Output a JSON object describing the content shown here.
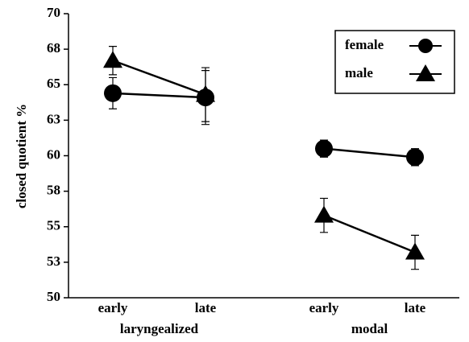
{
  "chart_data": {
    "type": "line",
    "ylabel": "closed quotient %",
    "categories": [
      "early",
      "late",
      "early",
      "late"
    ],
    "groups": [
      "laryngealized",
      "modal"
    ],
    "ylim": [
      50,
      70
    ],
    "yticks": [
      50,
      {
        "value": 52.5,
        "label": "53"
      },
      55,
      {
        "value": 57.5,
        "label": "58"
      },
      60,
      {
        "value": 62.5,
        "label": "63"
      },
      65,
      {
        "value": 67.5,
        "label": "68"
      },
      70
    ],
    "legend": "upper right",
    "series": [
      {
        "name": "female",
        "color": "#000000",
        "marker": "circle",
        "values": [
          64.4,
          64.1,
          60.5,
          59.9
        ],
        "errors": [
          1.1,
          1.9,
          0.6,
          0.6
        ]
      },
      {
        "name": "male",
        "color": "#000000",
        "marker": "triangle",
        "values": [
          66.7,
          64.3,
          55.8,
          53.2
        ],
        "errors": [
          1.0,
          1.9,
          1.2,
          1.2
        ]
      }
    ]
  }
}
